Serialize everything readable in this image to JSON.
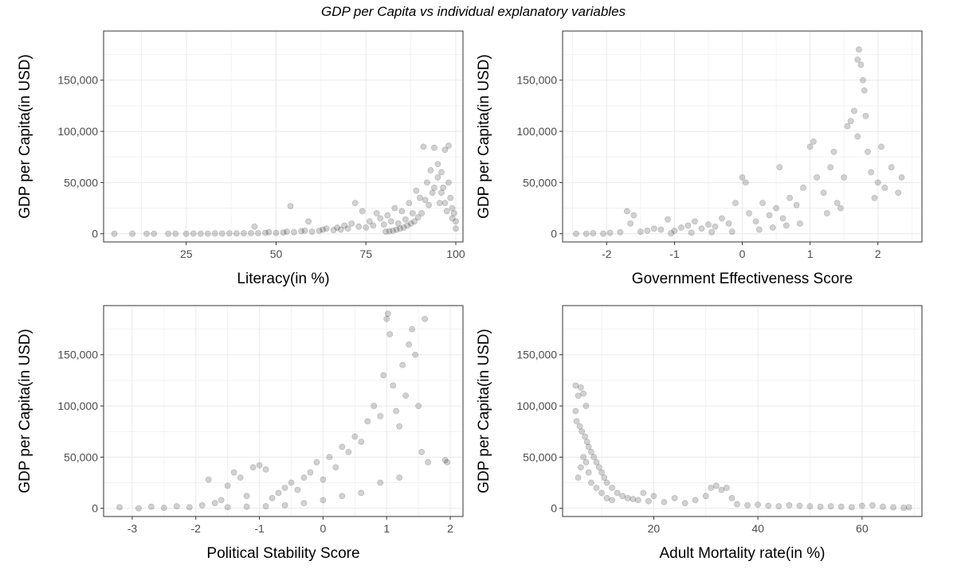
{
  "title": "GDP per Capita vs individual explanatory variables",
  "chart_data": [
    {
      "type": "scatter",
      "xlabel": "Literacy(in %)",
      "ylabel": "GDP per Capita(in USD)",
      "xlim": [
        2,
        102
      ],
      "ylim": [
        -8000,
        198000
      ],
      "x_ticks": [
        25,
        50,
        75,
        100
      ],
      "x_tick_labels": [
        "25",
        "50",
        "75",
        "100"
      ],
      "y_ticks": [
        0,
        50000,
        100000,
        150000
      ],
      "y_tick_labels": [
        "0",
        "50,000",
        "100,000",
        "150,000"
      ],
      "grid": true,
      "points": [
        [
          5,
          0
        ],
        [
          10,
          0
        ],
        [
          14,
          0
        ],
        [
          16,
          0
        ],
        [
          20,
          0
        ],
        [
          22,
          0
        ],
        [
          25,
          0
        ],
        [
          27,
          200
        ],
        [
          29,
          0
        ],
        [
          31,
          100
        ],
        [
          33,
          300
        ],
        [
          35,
          200
        ],
        [
          37,
          400
        ],
        [
          39,
          300
        ],
        [
          41,
          500
        ],
        [
          43,
          600
        ],
        [
          44,
          7000
        ],
        [
          45,
          500
        ],
        [
          47,
          900
        ],
        [
          48,
          1500
        ],
        [
          50,
          800
        ],
        [
          52,
          1200
        ],
        [
          53,
          2000
        ],
        [
          54,
          27000
        ],
        [
          55,
          1500
        ],
        [
          57,
          2500
        ],
        [
          58,
          3000
        ],
        [
          59,
          12000
        ],
        [
          60,
          2000
        ],
        [
          62,
          3000
        ],
        [
          63,
          4000
        ],
        [
          64,
          5000
        ],
        [
          66,
          3500
        ],
        [
          67,
          6000
        ],
        [
          68,
          4000
        ],
        [
          69,
          8000
        ],
        [
          70,
          5000
        ],
        [
          71,
          10000
        ],
        [
          72,
          30000
        ],
        [
          73,
          7000
        ],
        [
          74,
          22000
        ],
        [
          75,
          6000
        ],
        [
          76,
          12000
        ],
        [
          77,
          8000
        ],
        [
          78,
          20000
        ],
        [
          79,
          15000
        ],
        [
          80,
          9000
        ],
        [
          81,
          18000
        ],
        [
          82,
          12000
        ],
        [
          83,
          25000
        ],
        [
          84,
          10000
        ],
        [
          85,
          22000
        ],
        [
          86,
          14000
        ],
        [
          87,
          30000
        ],
        [
          88,
          20000
        ],
        [
          89,
          42000
        ],
        [
          90,
          35000
        ],
        [
          91,
          85000
        ],
        [
          92,
          50000
        ],
        [
          93,
          62000
        ],
        [
          94,
          45000
        ],
        [
          94,
          84000
        ],
        [
          95,
          55000
        ],
        [
          95,
          68000
        ],
        [
          96,
          40000
        ],
        [
          96,
          60000
        ],
        [
          97,
          30000
        ],
        [
          97,
          82000
        ],
        [
          98,
          50000
        ],
        [
          98,
          86000
        ],
        [
          99,
          25000
        ],
        [
          99,
          15000
        ],
        [
          100,
          5000
        ],
        [
          100,
          12000
        ],
        [
          99.5,
          20000
        ],
        [
          98.5,
          35000
        ],
        [
          97.5,
          22000
        ],
        [
          96.5,
          45000
        ],
        [
          95.5,
          30000
        ],
        [
          93.5,
          40000
        ],
        [
          92.5,
          28000
        ],
        [
          91.5,
          33000
        ],
        [
          90.5,
          20000
        ],
        [
          89.5,
          16000
        ],
        [
          88.5,
          12000
        ],
        [
          87.5,
          10000
        ],
        [
          86.5,
          8000
        ],
        [
          85.5,
          6000
        ],
        [
          84.5,
          5000
        ],
        [
          83.5,
          4000
        ],
        [
          82.5,
          3000
        ],
        [
          81.5,
          2500
        ],
        [
          80.5,
          2000
        ]
      ]
    },
    {
      "type": "scatter",
      "xlabel": "Government Effectiveness Score",
      "ylabel": "GDP per Capita(in USD)",
      "xlim": [
        -2.65,
        2.65
      ],
      "ylim": [
        -8000,
        198000
      ],
      "x_ticks": [
        -2,
        -1,
        0,
        1,
        2
      ],
      "x_tick_labels": [
        "-2",
        "-1",
        "0",
        "1",
        "2"
      ],
      "y_ticks": [
        0,
        50000,
        100000,
        150000
      ],
      "y_tick_labels": [
        "0",
        "50,000",
        "100,000",
        "150,000"
      ],
      "grid": true,
      "points": [
        [
          -2.45,
          0
        ],
        [
          -2.3,
          0
        ],
        [
          -2.2,
          500
        ],
        [
          -2.05,
          0
        ],
        [
          -1.95,
          800
        ],
        [
          -1.8,
          1500
        ],
        [
          -1.7,
          22000
        ],
        [
          -1.6,
          18000
        ],
        [
          -1.65,
          10000
        ],
        [
          -1.5,
          2000
        ],
        [
          -1.4,
          3000
        ],
        [
          -1.3,
          5000
        ],
        [
          -1.2,
          4000
        ],
        [
          -1.1,
          14000
        ],
        [
          -1.0,
          3000
        ],
        [
          -0.9,
          6000
        ],
        [
          -0.8,
          8000
        ],
        [
          -0.7,
          12000
        ],
        [
          -0.6,
          5000
        ],
        [
          -0.5,
          9000
        ],
        [
          -0.4,
          7000
        ],
        [
          -0.3,
          15000
        ],
        [
          -0.2,
          10000
        ],
        [
          -0.1,
          30000
        ],
        [
          0.0,
          55000
        ],
        [
          0.05,
          50000
        ],
        [
          0.1,
          20000
        ],
        [
          0.2,
          12000
        ],
        [
          0.3,
          30000
        ],
        [
          0.4,
          18000
        ],
        [
          0.5,
          25000
        ],
        [
          0.55,
          65000
        ],
        [
          0.6,
          15000
        ],
        [
          0.7,
          35000
        ],
        [
          0.8,
          28000
        ],
        [
          0.9,
          45000
        ],
        [
          1.0,
          85000
        ],
        [
          1.05,
          90000
        ],
        [
          1.1,
          55000
        ],
        [
          1.2,
          40000
        ],
        [
          1.3,
          65000
        ],
        [
          1.35,
          80000
        ],
        [
          1.4,
          30000
        ],
        [
          1.5,
          55000
        ],
        [
          1.55,
          105000
        ],
        [
          1.6,
          110000
        ],
        [
          1.65,
          120000
        ],
        [
          1.7,
          170000
        ],
        [
          1.72,
          180000
        ],
        [
          1.75,
          165000
        ],
        [
          1.78,
          150000
        ],
        [
          1.8,
          140000
        ],
        [
          1.82,
          115000
        ],
        [
          1.7,
          95000
        ],
        [
          1.85,
          80000
        ],
        [
          1.9,
          60000
        ],
        [
          2.0,
          50000
        ],
        [
          2.05,
          85000
        ],
        [
          2.1,
          45000
        ],
        [
          2.2,
          65000
        ],
        [
          2.3,
          40000
        ],
        [
          2.35,
          55000
        ],
        [
          1.95,
          35000
        ],
        [
          1.45,
          25000
        ],
        [
          1.25,
          20000
        ],
        [
          0.85,
          10000
        ],
        [
          0.65,
          8000
        ],
        [
          0.45,
          6000
        ],
        [
          0.25,
          4000
        ],
        [
          -0.15,
          2000
        ],
        [
          -0.45,
          1500
        ],
        [
          -0.75,
          1000
        ],
        [
          -1.05,
          500
        ]
      ]
    },
    {
      "type": "scatter",
      "xlabel": "Political Stability Score",
      "ylabel": "GDP per Capita(in USD)",
      "xlim": [
        -3.45,
        2.2
      ],
      "ylim": [
        -8000,
        198000
      ],
      "x_ticks": [
        -3,
        -2,
        -1,
        0,
        1,
        2
      ],
      "x_tick_labels": [
        "-3",
        "-2",
        "-1",
        "0",
        "1",
        "2"
      ],
      "y_ticks": [
        0,
        50000,
        100000,
        150000
      ],
      "y_tick_labels": [
        "0",
        "50,000",
        "100,000",
        "150,000"
      ],
      "grid": true,
      "points": [
        [
          -3.2,
          1000
        ],
        [
          -2.9,
          0
        ],
        [
          -2.7,
          1500
        ],
        [
          -2.5,
          500
        ],
        [
          -2.3,
          2000
        ],
        [
          -2.1,
          1000
        ],
        [
          -1.9,
          3000
        ],
        [
          -1.8,
          28000
        ],
        [
          -1.7,
          5000
        ],
        [
          -1.6,
          8000
        ],
        [
          -1.5,
          22000
        ],
        [
          -1.4,
          35000
        ],
        [
          -1.3,
          30000
        ],
        [
          -1.2,
          12000
        ],
        [
          -1.1,
          40000
        ],
        [
          -1.0,
          42000
        ],
        [
          -0.9,
          38000
        ],
        [
          -0.8,
          10000
        ],
        [
          -0.7,
          15000
        ],
        [
          -0.6,
          20000
        ],
        [
          -0.5,
          25000
        ],
        [
          -0.4,
          18000
        ],
        [
          -0.3,
          30000
        ],
        [
          -0.2,
          35000
        ],
        [
          -0.1,
          45000
        ],
        [
          0.0,
          28000
        ],
        [
          0.1,
          50000
        ],
        [
          0.2,
          40000
        ],
        [
          0.3,
          60000
        ],
        [
          0.4,
          55000
        ],
        [
          0.5,
          70000
        ],
        [
          0.6,
          65000
        ],
        [
          0.7,
          85000
        ],
        [
          0.8,
          100000
        ],
        [
          0.9,
          90000
        ],
        [
          0.95,
          130000
        ],
        [
          1.0,
          185000
        ],
        [
          1.02,
          190000
        ],
        [
          1.05,
          170000
        ],
        [
          1.1,
          120000
        ],
        [
          1.15,
          95000
        ],
        [
          1.2,
          80000
        ],
        [
          1.25,
          140000
        ],
        [
          1.3,
          110000
        ],
        [
          1.35,
          160000
        ],
        [
          1.4,
          175000
        ],
        [
          1.45,
          150000
        ],
        [
          1.5,
          100000
        ],
        [
          1.55,
          55000
        ],
        [
          1.6,
          185000
        ],
        [
          1.65,
          45000
        ],
        [
          1.92,
          47000
        ],
        [
          1.95,
          45000
        ],
        [
          1.2,
          30000
        ],
        [
          0.9,
          25000
        ],
        [
          0.6,
          15000
        ],
        [
          0.3,
          12000
        ],
        [
          0.0,
          8000
        ],
        [
          -0.3,
          5000
        ],
        [
          -0.6,
          3000
        ],
        [
          -0.9,
          2000
        ],
        [
          -1.2,
          1500
        ],
        [
          -1.5,
          1000
        ]
      ]
    },
    {
      "type": "scatter",
      "xlabel": "Adult Mortality rate(in %)",
      "ylabel": "GDP per Capita(in USD)",
      "xlim": [
        2.5,
        71.5
      ],
      "ylim": [
        -8000,
        198000
      ],
      "x_ticks": [
        20,
        40,
        60
      ],
      "x_tick_labels": [
        "20",
        "40",
        "60"
      ],
      "y_ticks": [
        0,
        50000,
        100000,
        150000
      ],
      "y_tick_labels": [
        "0",
        "50,000",
        "100,000",
        "150,000"
      ],
      "grid": true,
      "points": [
        [
          5,
          120000
        ],
        [
          5.5,
          110000
        ],
        [
          6,
          118000
        ],
        [
          6.5,
          112000
        ],
        [
          7,
          100000
        ],
        [
          5,
          95000
        ],
        [
          5.2,
          85000
        ],
        [
          5.8,
          80000
        ],
        [
          6.2,
          75000
        ],
        [
          6.8,
          70000
        ],
        [
          7.2,
          65000
        ],
        [
          7.5,
          60000
        ],
        [
          8,
          55000
        ],
        [
          8.5,
          50000
        ],
        [
          9,
          45000
        ],
        [
          9.5,
          40000
        ],
        [
          10,
          35000
        ],
        [
          10.5,
          30000
        ],
        [
          11,
          25000
        ],
        [
          12,
          20000
        ],
        [
          13,
          15000
        ],
        [
          14,
          12000
        ],
        [
          15,
          10000
        ],
        [
          16,
          9000
        ],
        [
          17,
          8000
        ],
        [
          18,
          15000
        ],
        [
          19,
          7000
        ],
        [
          20,
          12000
        ],
        [
          22,
          6000
        ],
        [
          24,
          10000
        ],
        [
          26,
          5000
        ],
        [
          28,
          8000
        ],
        [
          30,
          12000
        ],
        [
          31,
          20000
        ],
        [
          32,
          22000
        ],
        [
          33,
          18000
        ],
        [
          34,
          20000
        ],
        [
          35,
          10000
        ],
        [
          36,
          4000
        ],
        [
          38,
          3000
        ],
        [
          40,
          3500
        ],
        [
          42,
          2500
        ],
        [
          44,
          2000
        ],
        [
          46,
          3000
        ],
        [
          48,
          2500
        ],
        [
          50,
          2000
        ],
        [
          52,
          1500
        ],
        [
          54,
          2000
        ],
        [
          56,
          1500
        ],
        [
          58,
          1000
        ],
        [
          60,
          2500
        ],
        [
          62,
          3000
        ],
        [
          64,
          1500
        ],
        [
          66,
          1000
        ],
        [
          68,
          500
        ],
        [
          69,
          1000
        ],
        [
          5.5,
          30000
        ],
        [
          6,
          40000
        ],
        [
          6.5,
          50000
        ],
        [
          7,
          45000
        ],
        [
          7.5,
          35000
        ],
        [
          8,
          25000
        ],
        [
          9,
          20000
        ],
        [
          10,
          15000
        ],
        [
          11,
          10000
        ],
        [
          12,
          8000
        ]
      ]
    }
  ]
}
